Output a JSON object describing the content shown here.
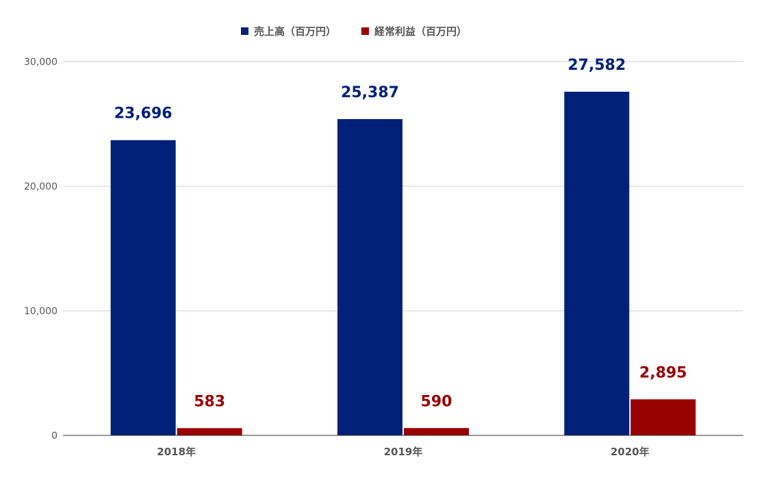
{
  "chart_data": {
    "type": "bar",
    "categories": [
      "2018年",
      "2019年",
      "2020年"
    ],
    "series": [
      {
        "name": "売上高（百万円）",
        "values": [
          23696,
          25387,
          27582
        ],
        "labels": [
          "23,696",
          "25,387",
          "27,582"
        ],
        "color": "#002177"
      },
      {
        "name": "経常利益（百万円）",
        "values": [
          583,
          590,
          2895
        ],
        "labels": [
          "583",
          "590",
          "2,895"
        ],
        "color": "#990000"
      }
    ],
    "yticks": [
      0,
      10000,
      20000,
      30000
    ],
    "ytick_labels": [
      "0",
      "10,000",
      "20,000",
      "30,000"
    ],
    "ylim": [
      0,
      30000
    ],
    "grid": true,
    "legend_position": "top-center",
    "gridline_color": "#cccccc",
    "axis_color": "#333333"
  }
}
